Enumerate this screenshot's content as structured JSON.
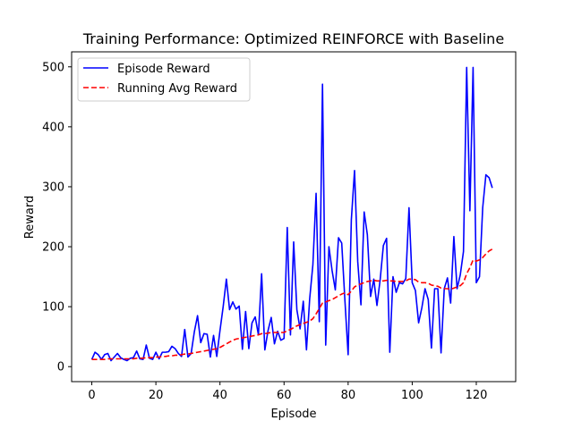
{
  "chart_data": {
    "type": "line",
    "title": "Training Performance: Optimized REINFORCE with Baseline",
    "xlabel": "Episode",
    "ylabel": "Reward",
    "xlim": [
      -6.3,
      132.3
    ],
    "ylim": [
      -25,
      525
    ],
    "xticks": [
      0,
      20,
      40,
      60,
      80,
      100,
      120
    ],
    "yticks": [
      0,
      100,
      200,
      300,
      400,
      500
    ],
    "grid": false,
    "legend_position": "top-left",
    "series": [
      {
        "name": "Episode Reward",
        "color": "#0000ff",
        "style": "solid",
        "values": [
          12,
          24,
          20,
          12,
          20,
          22,
          10,
          16,
          22,
          15,
          12,
          10,
          14,
          15,
          26,
          13,
          12,
          36,
          14,
          12,
          24,
          13,
          24,
          24,
          25,
          34,
          30,
          22,
          17,
          62,
          16,
          22,
          58,
          85,
          40,
          55,
          54,
          16,
          52,
          17,
          60,
          100,
          146,
          95,
          108,
          96,
          101,
          29,
          92,
          30,
          73,
          83,
          53,
          155,
          28,
          60,
          82,
          38,
          59,
          44,
          47,
          232,
          53,
          208,
          95,
          63,
          109,
          28,
          113,
          170,
          289,
          75,
          471,
          36,
          200,
          160,
          128,
          215,
          206,
          110,
          20,
          245,
          327,
          175,
          103,
          258,
          220,
          117,
          146,
          102,
          145,
          202,
          214,
          24,
          150,
          124,
          140,
          138,
          147,
          265,
          140,
          127,
          73,
          98,
          130,
          112,
          31,
          130,
          130,
          23,
          130,
          148,
          106,
          217,
          130,
          153,
          192,
          499,
          260,
          499,
          140,
          150,
          265,
          320,
          315,
          298
        ]
      },
      {
        "name": "Running Avg Reward",
        "color": "#ff0000",
        "style": "dashed",
        "values": [
          12,
          12,
          12,
          12,
          12,
          13,
          13,
          13,
          13,
          13,
          13,
          13,
          13,
          13,
          14,
          14,
          14,
          15,
          15,
          15,
          16,
          16,
          17,
          17,
          18,
          18,
          19,
          19,
          20,
          21,
          21,
          22,
          23,
          24,
          25,
          26,
          27,
          28,
          29,
          30,
          32,
          35,
          38,
          41,
          44,
          46,
          47,
          48,
          49,
          50,
          51,
          52,
          53,
          55,
          55,
          56,
          57,
          57,
          57,
          57,
          57,
          60,
          62,
          65,
          68,
          70,
          72,
          74,
          76,
          80,
          88,
          97,
          106,
          108,
          110,
          112,
          115,
          118,
          121,
          123,
          120,
          126,
          133,
          136,
          138,
          140,
          142,
          143,
          144,
          143,
          143,
          143,
          144,
          143,
          143,
          142,
          142,
          142,
          143,
          146,
          146,
          145,
          141,
          140,
          140,
          139,
          136,
          135,
          134,
          131,
          130,
          130,
          129,
          131,
          133,
          135,
          140,
          155,
          165,
          178,
          176,
          178,
          182,
          188,
          193,
          196
        ]
      }
    ]
  }
}
